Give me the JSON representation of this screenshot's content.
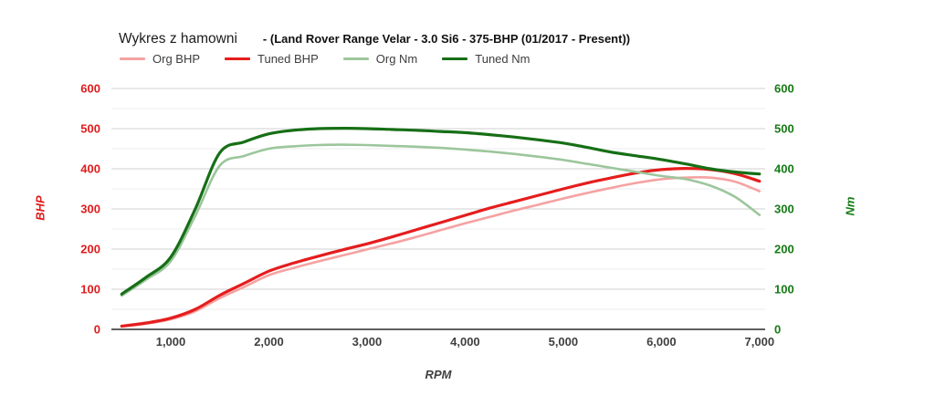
{
  "chart_data": {
    "type": "line",
    "title": "Wykres z hamowni",
    "subtitle": "- (Land Rover Range Velar - 3.0 Si6 - 375-BHP (01/2017 - Present))",
    "xlabel": "RPM",
    "ylabel_left": "BHP",
    "ylabel_right": "Nm",
    "legend_position": "top",
    "grid": true,
    "xlim": [
      400,
      7075
    ],
    "ylim": [
      0,
      600
    ],
    "y_ticks": [
      0,
      100,
      200,
      300,
      400,
      500,
      600
    ],
    "y_minor_step": 50,
    "x_ticks": [
      1000,
      2000,
      3000,
      4000,
      5000,
      6000,
      7000
    ],
    "x_tick_labels": [
      "1,000",
      "2,000",
      "3,000",
      "4,000",
      "5,000",
      "6,000",
      "7,000"
    ],
    "colors": {
      "org_bhp": "#f5a2a2",
      "tuned_bhp": "#e51d1d",
      "org_nm": "#9cc69c",
      "tuned_nm": "#166f16",
      "left_axis_text": "#e01b1c",
      "right_axis_text": "#157a15",
      "x_axis_text": "#3f3f3f",
      "gridline_major": "#d2d2d2",
      "gridline_minor": "#ececec",
      "axis_line": "#5f5f5f"
    },
    "x": [
      500,
      750,
      1000,
      1250,
      1500,
      1750,
      2000,
      2250,
      2500,
      2750,
      3000,
      3250,
      3500,
      3750,
      4000,
      4250,
      4500,
      4750,
      5000,
      5250,
      5500,
      5750,
      6000,
      6250,
      6500,
      6750,
      7000
    ],
    "series": [
      {
        "name": "Org BHP",
        "axis": "left",
        "color": "#f5a2a2",
        "width": 2.6,
        "values": [
          7,
          14,
          25,
          45,
          78,
          106,
          135,
          153,
          169,
          184,
          199,
          214,
          230,
          247,
          264,
          280,
          296,
          311,
          326,
          340,
          353,
          365,
          374,
          378,
          378,
          368,
          344
        ]
      },
      {
        "name": "Tuned BHP",
        "axis": "left",
        "color": "#e51d1d",
        "width": 3.2,
        "values": [
          8,
          16,
          28,
          50,
          85,
          115,
          145,
          165,
          182,
          198,
          213,
          230,
          248,
          266,
          284,
          302,
          318,
          334,
          350,
          365,
          378,
          390,
          398,
          401,
          398,
          388,
          369
        ]
      },
      {
        "name": "Org Nm",
        "axis": "right",
        "color": "#9cc69c",
        "width": 2.6,
        "values": [
          84,
          124,
          170,
          283,
          408,
          432,
          450,
          456,
          459,
          460,
          459,
          457,
          455,
          452,
          448,
          443,
          437,
          430,
          422,
          412,
          402,
          392,
          382,
          374,
          358,
          330,
          285
        ]
      },
      {
        "name": "Tuned Nm",
        "axis": "right",
        "color": "#166f16",
        "width": 3.2,
        "values": [
          88,
          130,
          180,
          300,
          440,
          467,
          487,
          496,
          500,
          501,
          500,
          498,
          496,
          493,
          490,
          485,
          479,
          472,
          464,
          453,
          441,
          432,
          423,
          412,
          400,
          392,
          387
        ]
      }
    ]
  }
}
